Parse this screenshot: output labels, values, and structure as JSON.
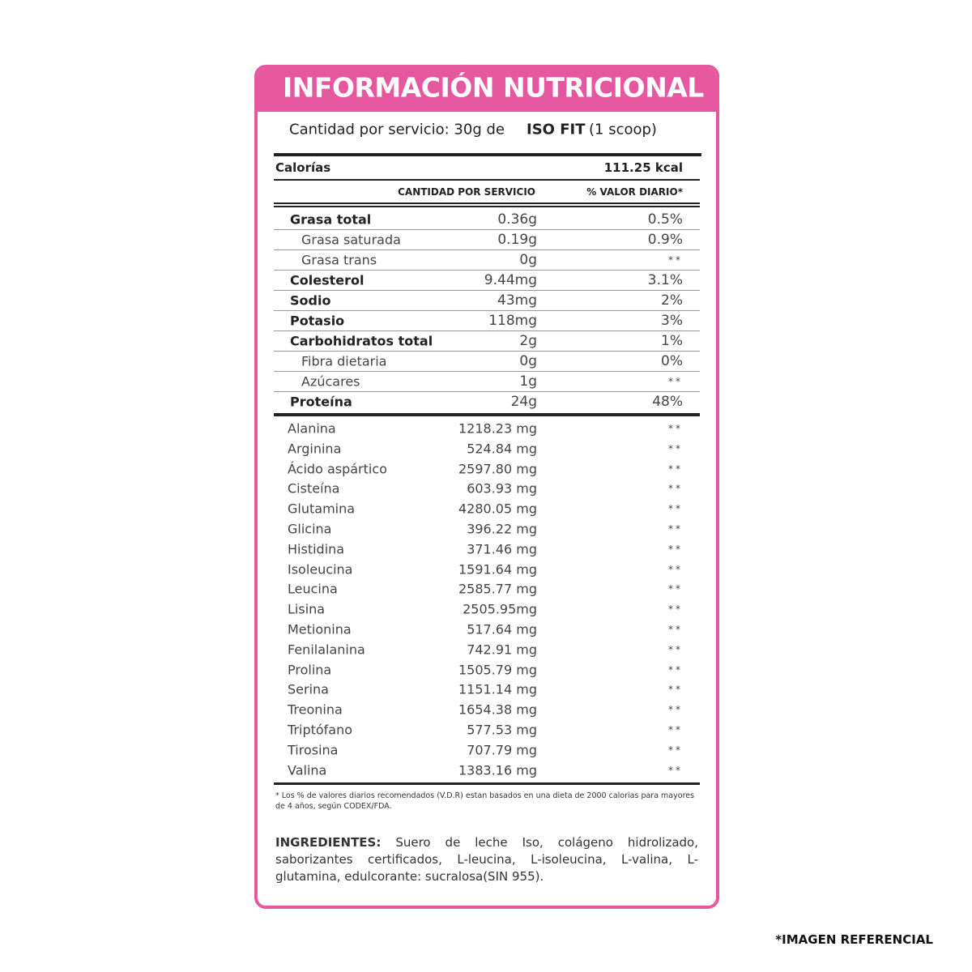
{
  "header": {
    "title": "INFORMACIÓN NUTRICIONAL"
  },
  "serving": {
    "prefix": "Cantidad por servicio: 30g de",
    "product": "ISO FIT",
    "suffix": "(1 scoop)"
  },
  "calories": {
    "label": "Calorías",
    "value": "111.25 kcal"
  },
  "table": {
    "columns": [
      "CANTIDAD POR SERVICIO",
      "% VALOR DIARIO*"
    ],
    "rows": [
      {
        "name": "Grasa total",
        "amount": "0.36g",
        "dv": "0.5%",
        "bold": true
      },
      {
        "name": "Grasa saturada",
        "amount": "0.19g",
        "dv": "0.9%",
        "bold": false
      },
      {
        "name": "Grasa trans",
        "amount": "0g",
        "dv": "**",
        "bold": false
      },
      {
        "name": "Colesterol",
        "amount": "9.44mg",
        "dv": "3.1%",
        "bold": true
      },
      {
        "name": "Sodio",
        "amount": "43mg",
        "dv": "2%",
        "bold": true
      },
      {
        "name": "Potasio",
        "amount": "118mg",
        "dv": "3%",
        "bold": true
      },
      {
        "name": "Carbohidratos total",
        "amount": "2g",
        "dv": "1%",
        "bold": true
      },
      {
        "name": "Fibra dietaria",
        "amount": "0g",
        "dv": "0%",
        "bold": false
      },
      {
        "name": "Azúcares",
        "amount": "1g",
        "dv": "**",
        "bold": false
      },
      {
        "name": "Proteína",
        "amount": "24g",
        "dv": "48%",
        "bold": true
      }
    ]
  },
  "amino_acids": [
    {
      "name": "Alanina",
      "amount": "1218.23 mg",
      "dv": "**"
    },
    {
      "name": "Arginina",
      "amount": "524.84 mg",
      "dv": "**"
    },
    {
      "name": "Ácido aspártico",
      "amount": "2597.80 mg",
      "dv": "**"
    },
    {
      "name": "Cisteína",
      "amount": "603.93 mg",
      "dv": "**"
    },
    {
      "name": "Glutamina",
      "amount": "4280.05 mg",
      "dv": "**"
    },
    {
      "name": "Glicina",
      "amount": "396.22 mg",
      "dv": "**"
    },
    {
      "name": "Histidina",
      "amount": "371.46 mg",
      "dv": "**"
    },
    {
      "name": "Isoleucina",
      "amount": "1591.64 mg",
      "dv": "**"
    },
    {
      "name": "Leucina",
      "amount": "2585.77 mg",
      "dv": "**"
    },
    {
      "name": "Lisina",
      "amount": "2505.95mg",
      "dv": "**"
    },
    {
      "name": "Metionina",
      "amount": "517.64 mg",
      "dv": "**"
    },
    {
      "name": "Fenilalanina",
      "amount": "742.91 mg",
      "dv": "**"
    },
    {
      "name": "Prolina",
      "amount": "1505.79 mg",
      "dv": "**"
    },
    {
      "name": "Serina",
      "amount": "1151.14 mg",
      "dv": "**"
    },
    {
      "name": "Treonina",
      "amount": "1654.38 mg",
      "dv": "**"
    },
    {
      "name": "Triptófano",
      "amount": "577.53 mg",
      "dv": "**"
    },
    {
      "name": "Tirosina",
      "amount": "707.79 mg",
      "dv": "**"
    },
    {
      "name": "Valina",
      "amount": "1383.16 mg",
      "dv": "**"
    }
  ],
  "footnote": "* Los % de valores diarios recomendados (V.D.R) estan basados en una dieta de 2000 calorias para mayores de 4 años, según CODEX/FDA.",
  "ingredients": {
    "label": "INGREDIENTES:",
    "text": "Suero de leche Iso, colágeno hidrolizado, saborizantes certificados, L-leucina, L-isoleucina, L-valina, L-glutamina, edulcorante: sucralosa(SIN 955)."
  },
  "disclaimer": "*IMAGEN REFERENCIAL"
}
